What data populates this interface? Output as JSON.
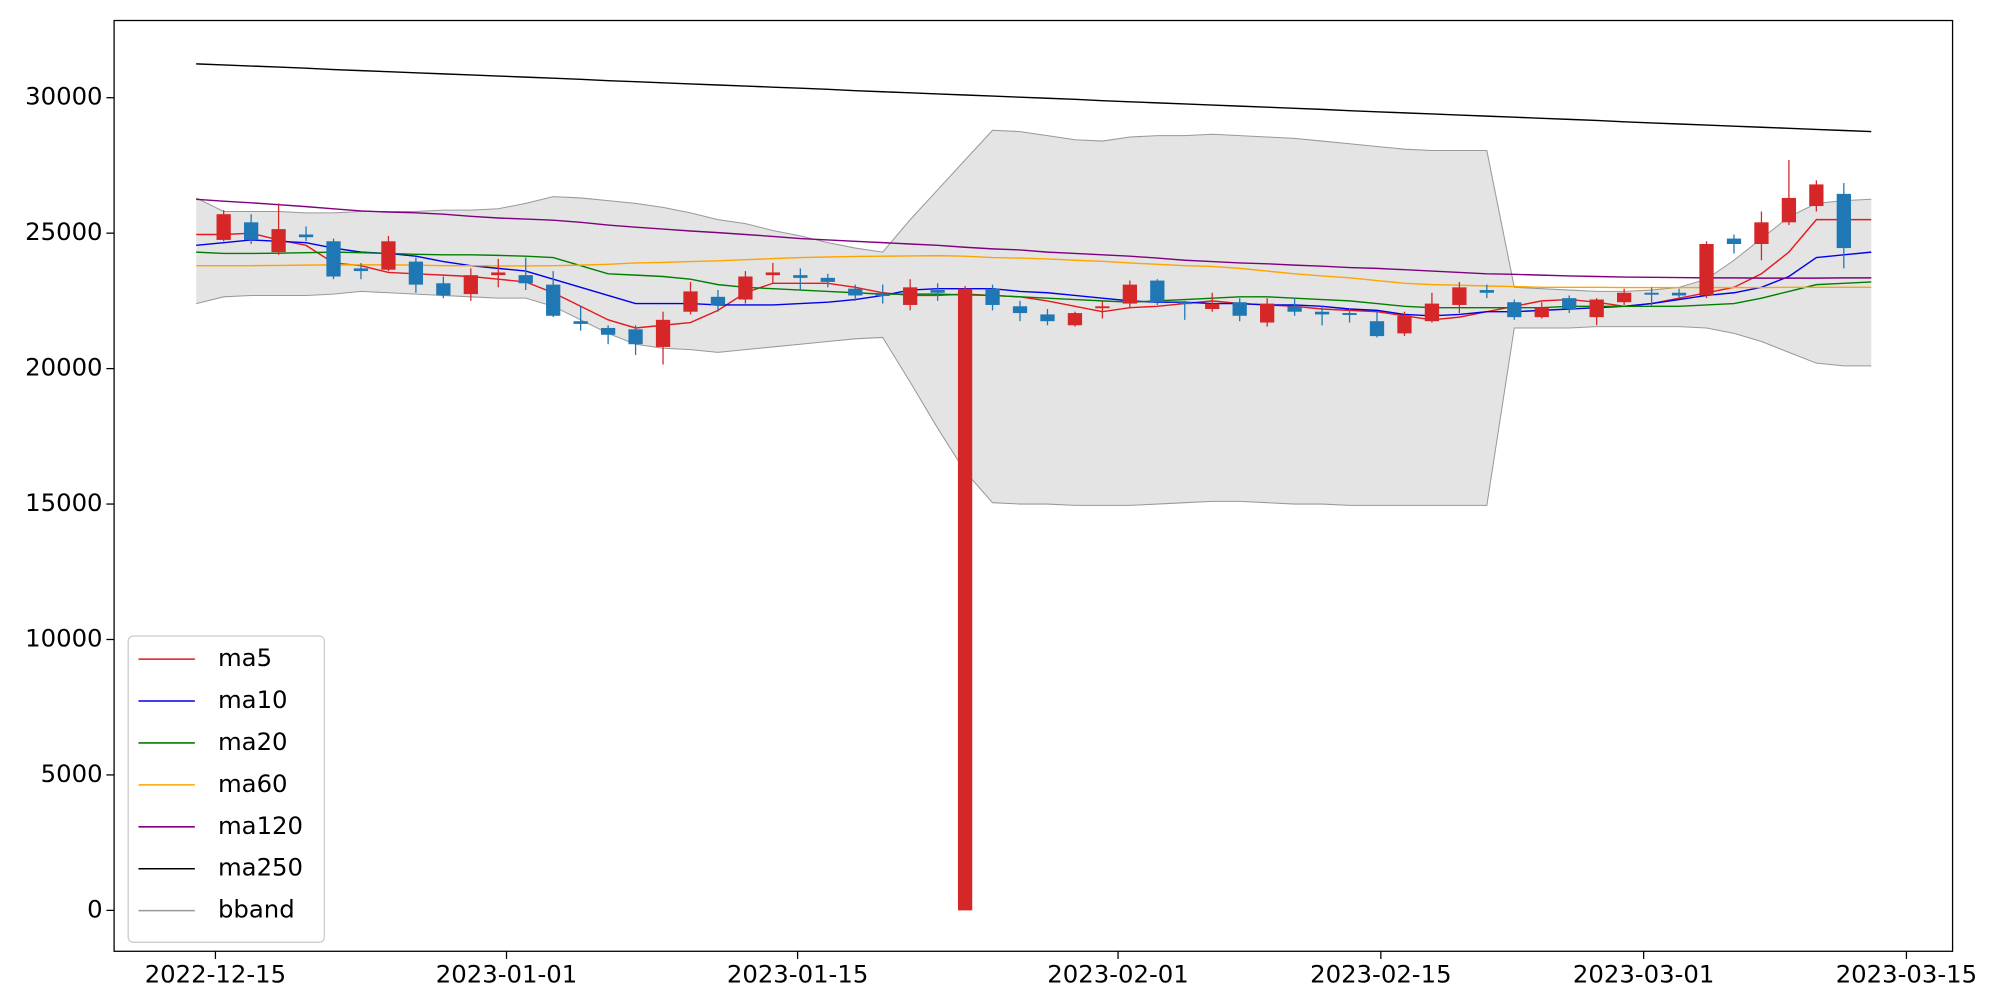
{
  "chart_data": {
    "type": "candlestick",
    "xlim": [
      -2.99,
      63.96
    ],
    "xticks": [
      {
        "value": 0.7,
        "label": "2022-12-15"
      },
      {
        "value": 11.3,
        "label": "2023-01-01"
      },
      {
        "value": 21.9,
        "label": "2023-01-15"
      },
      {
        "value": 33.57,
        "label": "2023-02-01"
      },
      {
        "value": 43.14,
        "label": "2023-02-15"
      },
      {
        "value": 52.71,
        "label": "2023-03-01"
      },
      {
        "value": 62.28,
        "label": "2023-03-15"
      }
    ],
    "ylim": [
      -1510,
      32850
    ],
    "yticks": [
      0,
      5000,
      10000,
      15000,
      20000,
      25000,
      30000
    ],
    "legend": "lower left",
    "ohlc": {
      "up_color": "#d62728",
      "down_color": "#1f77b4",
      "open": [
        null,
        24750,
        25400,
        24300,
        24950,
        24700,
        23700,
        23650,
        23950,
        23150,
        22750,
        23450,
        23450,
        23100,
        21750,
        21500,
        21450,
        20800,
        22100,
        22650,
        22550,
        23450,
        23450,
        23350,
        22950,
        22750,
        22350,
        22900,
        0,
        22950,
        22300,
        22000,
        21600,
        22250,
        22400,
        23250,
        22450,
        22200,
        22450,
        21700,
        22300,
        22100,
        22050,
        21750,
        21300,
        21750,
        22350,
        22900,
        22450,
        21900,
        22600,
        21900,
        22450,
        22800,
        22800,
        22700,
        24800,
        24600,
        25400,
        26000,
        26450,
        null
      ],
      "high": [
        null,
        25850,
        25700,
        26100,
        25250,
        24800,
        23900,
        24900,
        24100,
        23400,
        23700,
        24050,
        24100,
        23600,
        22300,
        21600,
        21600,
        22100,
        23200,
        22900,
        23600,
        23900,
        23700,
        23500,
        23100,
        23100,
        23300,
        23150,
        23050,
        23100,
        22500,
        22200,
        22100,
        22500,
        23250,
        23300,
        22500,
        22800,
        22600,
        22600,
        22600,
        22300,
        22200,
        22100,
        22100,
        22800,
        23200,
        23100,
        22550,
        22450,
        22700,
        22600,
        22950,
        23000,
        22950,
        24700,
        24950,
        25800,
        27700,
        26950,
        26850,
        null
      ],
      "low": [
        null,
        24700,
        24600,
        24200,
        24700,
        23300,
        23300,
        23600,
        22800,
        22600,
        22500,
        23000,
        22900,
        21900,
        21400,
        20900,
        20500,
        20150,
        22000,
        22100,
        22400,
        23150,
        22900,
        23000,
        22500,
        22400,
        22150,
        22500,
        0,
        22150,
        21750,
        21600,
        21550,
        21850,
        22250,
        22350,
        21800,
        22100,
        21750,
        21550,
        21950,
        21600,
        21700,
        21150,
        21200,
        21700,
        22050,
        22600,
        21800,
        21850,
        22050,
        21600,
        22350,
        22300,
        22600,
        22600,
        24250,
        24000,
        25300,
        25800,
        23700,
        null
      ],
      "close": [
        null,
        25700,
        24750,
        25150,
        24850,
        23400,
        23600,
        24700,
        23100,
        22700,
        23450,
        23550,
        23150,
        21950,
        21650,
        21250,
        20900,
        21800,
        22850,
        22350,
        23400,
        23550,
        23350,
        23200,
        22700,
        22700,
        23000,
        22800,
        22950,
        22350,
        22050,
        21750,
        22050,
        22300,
        23100,
        22450,
        22400,
        22400,
        21950,
        22400,
        22100,
        22000,
        22000,
        21200,
        21950,
        22400,
        23000,
        22800,
        21900,
        22250,
        22200,
        22550,
        22800,
        22750,
        22700,
        24600,
        24600,
        25400,
        26300,
        26800,
        24450,
        null
      ]
    },
    "series": [
      {
        "name": "ma5",
        "color": "#e41a1c",
        "values": [
          24950,
          24950,
          25000,
          24750,
          24550,
          23900,
          23800,
          23550,
          23500,
          23450,
          23400,
          23300,
          23200,
          22800,
          22300,
          21800,
          21500,
          21600,
          21700,
          22150,
          22800,
          23150,
          23150,
          23150,
          23000,
          22800,
          22700,
          22700,
          22750,
          22700,
          22650,
          22500,
          22300,
          22100,
          22250,
          22300,
          22400,
          22500,
          22400,
          22350,
          22300,
          22200,
          22150,
          22100,
          21950,
          21800,
          21900,
          22100,
          22300,
          22500,
          22550,
          22450,
          22300,
          22400,
          22600,
          22800,
          23000,
          23500,
          24300,
          25500,
          25500,
          25500
        ]
      },
      {
        "name": "ma10",
        "color": "#0000ee",
        "values": [
          24550,
          24650,
          24750,
          24700,
          24650,
          24450,
          24300,
          24250,
          24150,
          23950,
          23800,
          23700,
          23600,
          23300,
          23000,
          22700,
          22400,
          22400,
          22400,
          22350,
          22350,
          22350,
          22400,
          22450,
          22550,
          22700,
          22900,
          22950,
          22950,
          22950,
          22850,
          22800,
          22700,
          22600,
          22500,
          22450,
          22450,
          22400,
          22400,
          22350,
          22350,
          22300,
          22200,
          22150,
          22000,
          21950,
          22000,
          22100,
          22100,
          22150,
          22200,
          22250,
          22300,
          22400,
          22550,
          22700,
          22800,
          23000,
          23400,
          24100,
          24200,
          24300
        ]
      },
      {
        "name": "ma20",
        "color": "#008000",
        "values": [
          24300,
          24250,
          24250,
          24260,
          24280,
          24300,
          24280,
          24250,
          24220,
          24200,
          24200,
          24180,
          24150,
          24100,
          23800,
          23500,
          23450,
          23400,
          23300,
          23100,
          23000,
          22950,
          22900,
          22850,
          22800,
          22750,
          22750,
          22750,
          22720,
          22700,
          22650,
          22600,
          22550,
          22500,
          22450,
          22500,
          22550,
          22600,
          22650,
          22650,
          22600,
          22550,
          22500,
          22400,
          22300,
          22250,
          22250,
          22250,
          22250,
          22250,
          22300,
          22300,
          22300,
          22300,
          22300,
          22350,
          22400,
          22600,
          22850,
          23100,
          23150,
          23200
        ]
      },
      {
        "name": "ma60",
        "color": "#ffa500",
        "values": [
          23800,
          23800,
          23800,
          23810,
          23820,
          23830,
          23830,
          23830,
          23820,
          23800,
          23800,
          23790,
          23790,
          23800,
          23820,
          23850,
          23900,
          23920,
          23950,
          23980,
          24020,
          24060,
          24100,
          24120,
          24140,
          24150,
          24160,
          24170,
          24150,
          24100,
          24080,
          24050,
          24000,
          23960,
          23900,
          23850,
          23800,
          23770,
          23700,
          23600,
          23500,
          23420,
          23350,
          23250,
          23150,
          23100,
          23080,
          23050,
          23030,
          23000,
          23000,
          23000,
          22990,
          22990,
          22990,
          22990,
          22990,
          22990,
          23000,
          23000,
          23000,
          23000
        ]
      },
      {
        "name": "ma120",
        "color": "#800080",
        "values": [
          26250,
          26180,
          26120,
          26050,
          25980,
          25900,
          25820,
          25780,
          25750,
          25700,
          25620,
          25560,
          25520,
          25480,
          25400,
          25300,
          25220,
          25150,
          25080,
          25020,
          24950,
          24880,
          24800,
          24750,
          24700,
          24650,
          24600,
          24550,
          24480,
          24420,
          24380,
          24300,
          24250,
          24200,
          24150,
          24080,
          24000,
          23950,
          23900,
          23870,
          23820,
          23780,
          23730,
          23700,
          23650,
          23600,
          23550,
          23500,
          23480,
          23450,
          23420,
          23400,
          23380,
          23370,
          23360,
          23350,
          23350,
          23340,
          23340,
          23340,
          23350,
          23350
        ]
      },
      {
        "name": "ma250",
        "color": "#000000",
        "values": [
          31250,
          31210,
          31170,
          31130,
          31090,
          31040,
          31000,
          30960,
          30920,
          30880,
          30840,
          30800,
          30760,
          30720,
          30680,
          30630,
          30590,
          30550,
          30510,
          30470,
          30430,
          30390,
          30350,
          30310,
          30260,
          30220,
          30180,
          30140,
          30100,
          30060,
          30020,
          29980,
          29940,
          29890,
          29850,
          29810,
          29770,
          29730,
          29690,
          29650,
          29610,
          29570,
          29520,
          29480,
          29440,
          29400,
          29360,
          29320,
          29280,
          29240,
          29200,
          29160,
          29110,
          29070,
          29030,
          28990,
          28950,
          28910,
          28870,
          28830,
          28790,
          28750
        ]
      }
    ],
    "bband": {
      "name": "bband",
      "color": "#999999",
      "fill": "#e4e4e4",
      "upper": [
        26300,
        25800,
        25800,
        25800,
        25750,
        25750,
        25800,
        25800,
        25800,
        25850,
        25850,
        25900,
        26100,
        26350,
        26300,
        26200,
        26100,
        25950,
        25750,
        25500,
        25350,
        25100,
        24900,
        24650,
        24450,
        24300,
        25500,
        26600,
        27700,
        28800,
        28750,
        28600,
        28450,
        28400,
        28550,
        28600,
        28600,
        28650,
        28600,
        28550,
        28500,
        28400,
        28300,
        28200,
        28100,
        28050,
        28050,
        28050,
        23000,
        22950,
        22900,
        22850,
        22850,
        22900,
        23000,
        23300,
        24000,
        24800,
        25600,
        26100,
        26200,
        26250
      ],
      "lower": [
        22400,
        22650,
        22700,
        22700,
        22700,
        22750,
        22850,
        22800,
        22750,
        22700,
        22650,
        22600,
        22600,
        22300,
        21800,
        21300,
        20900,
        20750,
        20700,
        20600,
        20700,
        20800,
        20900,
        21000,
        21100,
        21150,
        19500,
        17800,
        16200,
        15050,
        15000,
        15000,
        14950,
        14950,
        14950,
        15000,
        15050,
        15100,
        15100,
        15050,
        15000,
        15000,
        14950,
        14950,
        14950,
        14950,
        14950,
        14950,
        21500,
        21500,
        21500,
        21550,
        21550,
        21550,
        21550,
        21500,
        21300,
        21000,
        20600,
        20200,
        20100,
        20100
      ]
    }
  }
}
